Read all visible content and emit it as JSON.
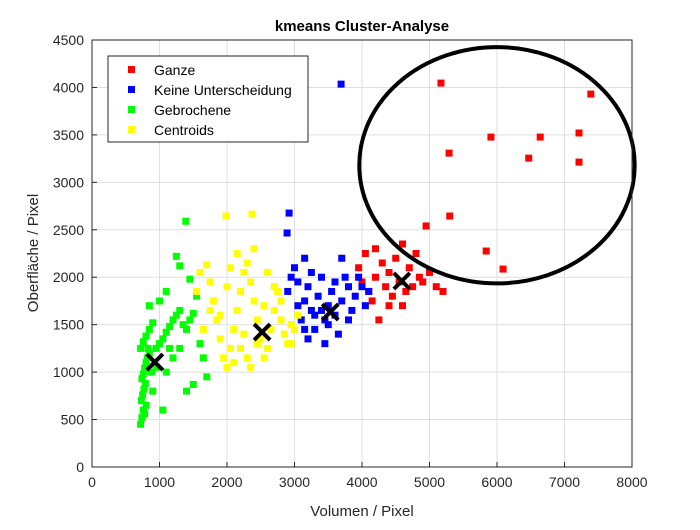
{
  "chart_data": {
    "type": "scatter",
    "title": "kmeans Cluster-Analyse",
    "xlabel": "Volumen / Pixel",
    "ylabel": "Oberfläche / Pixel",
    "xlim": [
      0,
      8000
    ],
    "ylim": [
      0,
      4500
    ],
    "xticks": [
      0,
      1000,
      2000,
      3000,
      4000,
      5000,
      6000,
      7000,
      8000
    ],
    "yticks": [
      0,
      500,
      1000,
      1500,
      2000,
      2500,
      3000,
      3500,
      4000,
      4500
    ],
    "grid": true,
    "legend_placement": "top-left",
    "series": [
      {
        "name": "Ganze",
        "color": "#ff0000",
        "points": [
          [
            3950,
            2100
          ],
          [
            4000,
            1950
          ],
          [
            4050,
            2250
          ],
          [
            4100,
            1850
          ],
          [
            4150,
            1750
          ],
          [
            4200,
            2000
          ],
          [
            4250,
            1550
          ],
          [
            4300,
            2150
          ],
          [
            4350,
            1900
          ],
          [
            4400,
            2050
          ],
          [
            4450,
            1800
          ],
          [
            4500,
            2200
          ],
          [
            4550,
            1950
          ],
          [
            4600,
            2350
          ],
          [
            4650,
            1850
          ],
          [
            4700,
            2100
          ],
          [
            4750,
            1900
          ],
          [
            4800,
            2250
          ],
          [
            4850,
            2000
          ],
          [
            4900,
            1950
          ],
          [
            5000,
            2050
          ],
          [
            5100,
            1900
          ],
          [
            5200,
            1850
          ],
          [
            4200,
            2300
          ],
          [
            4400,
            1700
          ],
          [
            4600,
            1700
          ],
          [
            5170,
            4046
          ],
          [
            7390,
            3930
          ],
          [
            5910,
            3477
          ],
          [
            6640,
            3477
          ],
          [
            7215,
            3520
          ],
          [
            5290,
            3308
          ],
          [
            6470,
            3255
          ],
          [
            7215,
            3213
          ],
          [
            4950,
            2540
          ],
          [
            5300,
            2645
          ],
          [
            5840,
            2276
          ],
          [
            6090,
            2086
          ]
        ]
      },
      {
        "name": "Keine Unterscheidung",
        "color": "#0000ff",
        "points": [
          [
            2900,
            1850
          ],
          [
            2950,
            2000
          ],
          [
            3000,
            2100
          ],
          [
            3050,
            1700
          ],
          [
            3100,
            1550
          ],
          [
            3150,
            1750
          ],
          [
            3200,
            1900
          ],
          [
            3250,
            1650
          ],
          [
            3300,
            1450
          ],
          [
            3350,
            1800
          ],
          [
            3400,
            2000
          ],
          [
            3450,
            1550
          ],
          [
            3500,
            1700
          ],
          [
            3550,
            1850
          ],
          [
            3600,
            1600
          ],
          [
            3650,
            1400
          ],
          [
            3700,
            1750
          ],
          [
            3750,
            2000
          ],
          [
            3800,
            1900
          ],
          [
            3850,
            1650
          ],
          [
            3900,
            1800
          ],
          [
            3950,
            2000
          ],
          [
            4000,
            1900
          ],
          [
            4050,
            1700
          ],
          [
            4100,
            1850
          ],
          [
            3200,
            1350
          ],
          [
            3400,
            1650
          ],
          [
            3600,
            1950
          ],
          [
            3700,
            2200
          ],
          [
            3800,
            1550
          ],
          [
            3300,
            1600
          ],
          [
            3500,
            1500
          ],
          [
            3150,
            1450
          ],
          [
            3050,
            1950
          ],
          [
            3250,
            2050
          ],
          [
            3690,
            4035
          ],
          [
            2920,
            2676
          ],
          [
            2890,
            2466
          ],
          [
            3150,
            2200
          ],
          [
            3450,
            1300
          ]
        ]
      },
      {
        "name": "Gebrochene",
        "color": "#00ff00",
        "points": [
          [
            720,
            450
          ],
          [
            740,
            520
          ],
          [
            760,
            600
          ],
          [
            780,
            560
          ],
          [
            800,
            650
          ],
          [
            730,
            700
          ],
          [
            750,
            760
          ],
          [
            770,
            820
          ],
          [
            790,
            880
          ],
          [
            740,
            930
          ],
          [
            760,
            980
          ],
          [
            780,
            1040
          ],
          [
            800,
            1100
          ],
          [
            820,
            1150
          ],
          [
            850,
            1200
          ],
          [
            720,
            1250
          ],
          [
            760,
            1320
          ],
          [
            800,
            1380
          ],
          [
            850,
            1450
          ],
          [
            900,
            1520
          ],
          [
            950,
            1250
          ],
          [
            1000,
            1300
          ],
          [
            1050,
            1350
          ],
          [
            1100,
            1420
          ],
          [
            1150,
            1480
          ],
          [
            1200,
            1550
          ],
          [
            1250,
            1600
          ],
          [
            1300,
            1650
          ],
          [
            1350,
            1500
          ],
          [
            1400,
            1450
          ],
          [
            1450,
            1550
          ],
          [
            1500,
            1620
          ],
          [
            1250,
            2220
          ],
          [
            1300,
            2120
          ],
          [
            1450,
            1980
          ],
          [
            1550,
            1800
          ],
          [
            1600,
            1300
          ],
          [
            1650,
            1150
          ],
          [
            1700,
            950
          ],
          [
            1500,
            870
          ],
          [
            1400,
            800
          ],
          [
            1050,
            600
          ],
          [
            900,
            800
          ],
          [
            950,
            1050
          ],
          [
            1100,
            1000
          ],
          [
            1200,
            1150
          ],
          [
            1300,
            1250
          ],
          [
            850,
            1700
          ],
          [
            1000,
            1750
          ],
          [
            1390,
            2590
          ],
          [
            1100,
            1850
          ],
          [
            880,
            1000
          ],
          [
            830,
            1250
          ],
          [
            1150,
            1250
          ]
        ]
      },
      {
        "name": "Centroids",
        "color": "#ffff00",
        "points": [
          [
            1550,
            1850
          ],
          [
            1600,
            2050
          ],
          [
            1700,
            2130
          ],
          [
            1750,
            1950
          ],
          [
            1800,
            1750
          ],
          [
            1850,
            1550
          ],
          [
            1900,
            1350
          ],
          [
            1950,
            1150
          ],
          [
            2000,
            1050
          ],
          [
            2050,
            1250
          ],
          [
            2100,
            1450
          ],
          [
            2150,
            1650
          ],
          [
            2200,
            1850
          ],
          [
            2250,
            2050
          ],
          [
            2300,
            2150
          ],
          [
            2350,
            1950
          ],
          [
            2400,
            1750
          ],
          [
            2450,
            1550
          ],
          [
            2500,
            1350
          ],
          [
            2550,
            1150
          ],
          [
            2600,
            1250
          ],
          [
            2650,
            1450
          ],
          [
            2700,
            1650
          ],
          [
            2750,
            1850
          ],
          [
            2800,
            1550
          ],
          [
            2850,
            1400
          ],
          [
            2900,
            1300
          ],
          [
            2950,
            1500
          ],
          [
            3000,
            1450
          ],
          [
            3050,
            1600
          ],
          [
            2200,
            1250
          ],
          [
            2300,
            1150
          ],
          [
            2100,
            1100
          ],
          [
            1900,
            1600
          ],
          [
            2000,
            1900
          ],
          [
            2050,
            2100
          ],
          [
            2150,
            2250
          ],
          [
            2400,
            2300
          ],
          [
            2600,
            2050
          ],
          [
            2700,
            1900
          ],
          [
            2800,
            1750
          ],
          [
            1985,
            2645
          ],
          [
            2370,
            2665
          ],
          [
            2250,
            1400
          ],
          [
            2550,
            1700
          ],
          [
            1750,
            1650
          ],
          [
            1650,
            1450
          ],
          [
            2350,
            1050
          ],
          [
            2450,
            1300
          ],
          [
            2950,
            1300
          ]
        ]
      }
    ],
    "centroid_markers": [
      [
        930,
        1106
      ],
      [
        2520,
        1422
      ],
      [
        3530,
        1633
      ],
      [
        4590,
        1960
      ]
    ],
    "annotation_ellipse": {
      "center": [
        6000,
        3180
      ],
      "radius_x": 2040,
      "radius_y": 1245
    }
  }
}
